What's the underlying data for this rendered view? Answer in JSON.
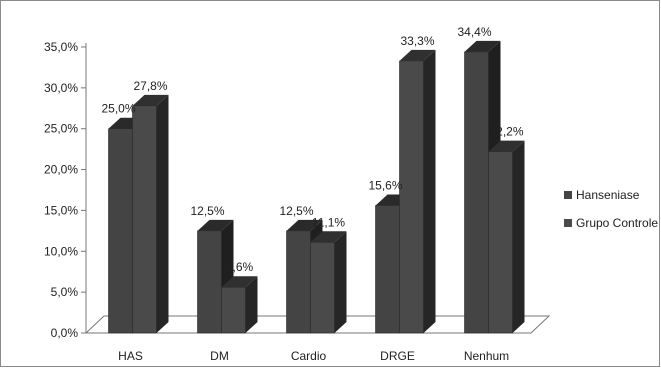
{
  "chart_data": {
    "type": "bar",
    "categories": [
      "HAS",
      "DM",
      "Cardio",
      "DRGE",
      "Nenhum"
    ],
    "series": [
      {
        "name": "Hanseniase",
        "values": [
          25.0,
          12.5,
          12.5,
          15.6,
          34.4
        ],
        "labels": [
          "25,0%",
          "12,5%",
          "12,5%",
          "15,6%",
          "34,4%"
        ],
        "color": "#444444"
      },
      {
        "name": "Grupo Controle",
        "values": [
          27.8,
          5.6,
          11.1,
          33.3,
          22.2
        ],
        "labels": [
          "27,8%",
          "5,6%",
          "11,1%",
          "33,3%",
          "22,2%"
        ],
        "color": "#4a4a4a"
      }
    ],
    "y_ticks": [
      "0,0%",
      "5,0%",
      "10,0%",
      "15,0%",
      "20,0%",
      "25,0%",
      "30,0%",
      "35,0%"
    ],
    "ylim": [
      0,
      35
    ],
    "y_step": 5,
    "three_d": true,
    "legend_position": "right",
    "grid": false
  }
}
